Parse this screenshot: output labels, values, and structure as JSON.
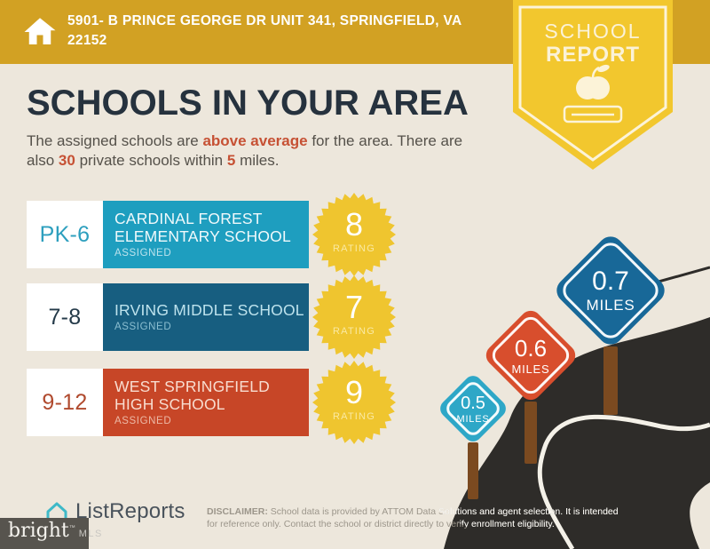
{
  "header": {
    "address_line1": "5901- B PRINCE GEORGE DR UNIT 341, SPRINGFIELD, VA",
    "address_line2": "22152",
    "badge_line1": "SCHOOL",
    "badge_line2": "REPORT"
  },
  "main": {
    "title": "SCHOOLS IN YOUR AREA",
    "intro": {
      "t1": "The assigned schools are ",
      "h1": "above average",
      "t2": " for the area. There are",
      "t3": "also ",
      "h2": "30",
      "t4": " private schools within ",
      "h3": "5",
      "t5": " miles."
    }
  },
  "schools": [
    {
      "grades": "PK-6",
      "name": "CARDINAL FOREST ELEMENTARY SCHOOL",
      "status": "ASSIGNED",
      "rating": "8",
      "rating_label": "RATING"
    },
    {
      "grades": "7-8",
      "name": "IRVING MIDDLE SCHOOL",
      "status": "ASSIGNED",
      "rating": "7",
      "rating_label": "RATING"
    },
    {
      "grades": "9-12",
      "name": "WEST SPRINGFIELD HIGH SCHOOL",
      "status": "ASSIGNED",
      "rating": "9",
      "rating_label": "RATING"
    }
  ],
  "distances": [
    {
      "value": "0.5",
      "unit": "MILES"
    },
    {
      "value": "0.6",
      "unit": "MILES"
    },
    {
      "value": "0.7",
      "unit": "MILES"
    }
  ],
  "footer": {
    "brand": "ListReports",
    "mls_brand": "bright",
    "mls_tm": "™",
    "mls_suffix": "MLS",
    "disclaimer_label": "DISCLAIMER:",
    "disclaimer_text": " School data is provided by ATTOM Data Solutions and agent selection. It is intended for reference only. Contact the school or district directly to verify enrollment eligibility."
  },
  "colors": {
    "header_gold": "#D2A123",
    "badge_yellow": "#F2C72E",
    "background_cream": "#EDE7DC",
    "title_navy": "#26323E",
    "accent_red": "#C65134",
    "elementary_teal": "#1E9EBF",
    "middle_blue": "#175E80",
    "high_red": "#C74627",
    "burst_yellow": "#EFC52F",
    "road_dark": "#2E2C29",
    "post_brown": "#7B4A20",
    "sign_teal": "#2EA7C7",
    "sign_red": "#D84E2D",
    "sign_blue": "#186898"
  }
}
